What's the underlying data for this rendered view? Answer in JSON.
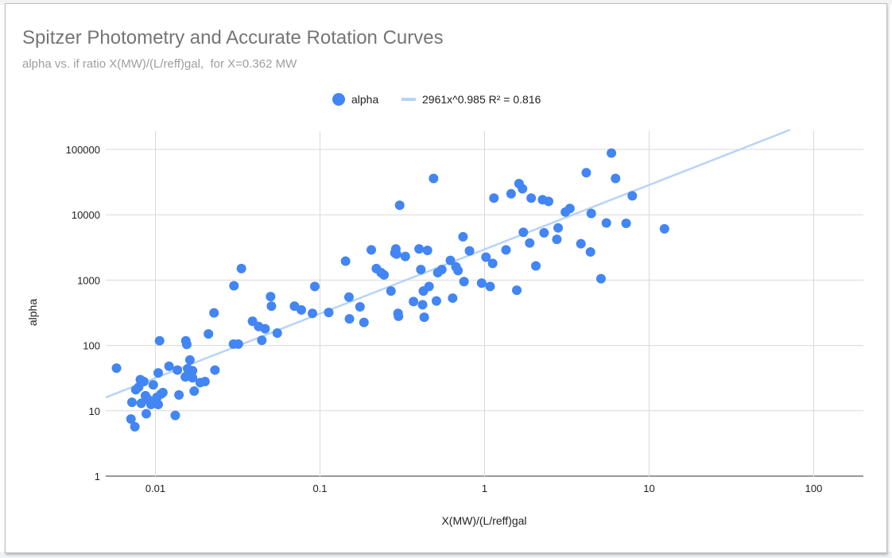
{
  "chart_data": {
    "type": "scatter",
    "title": "Spitzer Photometry and Accurate Rotation Curves",
    "subtitle": "alpha vs. if ratio X(MW)/(L/reff)gal,  for X=0.362 MW",
    "xlabel": "X(MW)/(L/reff)gal",
    "ylabel": "alpha",
    "x_scale": "log",
    "y_scale": "log",
    "xlim": [
      0.005,
      200
    ],
    "ylim": [
      1,
      200000
    ],
    "x_ticks": [
      0.01,
      0.1,
      1,
      10,
      100
    ],
    "x_tick_labels": [
      "0.01",
      "0.1",
      "1",
      "10",
      "100"
    ],
    "y_ticks": [
      1,
      10,
      100,
      1000,
      10000,
      100000
    ],
    "y_tick_labels": [
      "1",
      "10",
      "100",
      "1000",
      "10000",
      "100000"
    ],
    "grid": true,
    "legend_position": "top-center",
    "colors": {
      "points": "#4285f4",
      "trendline": "#b7d3f8",
      "grid": "#d9d9d9"
    },
    "series": [
      {
        "name": "alpha",
        "points": [
          [
            0.0058,
            45
          ],
          [
            0.0071,
            7.5
          ],
          [
            0.0072,
            13.5
          ],
          [
            0.0075,
            5.7
          ],
          [
            0.0076,
            21
          ],
          [
            0.0079,
            23
          ],
          [
            0.0081,
            30
          ],
          [
            0.0082,
            13
          ],
          [
            0.0085,
            28
          ],
          [
            0.0087,
            17
          ],
          [
            0.0088,
            9
          ],
          [
            0.009,
            15
          ],
          [
            0.0094,
            12.5
          ],
          [
            0.0097,
            25
          ],
          [
            0.0102,
            16
          ],
          [
            0.0104,
            38
          ],
          [
            0.0104,
            12.5
          ],
          [
            0.0106,
            118
          ],
          [
            0.0108,
            18
          ],
          [
            0.0111,
            19
          ],
          [
            0.0121,
            48
          ],
          [
            0.0132,
            8.5
          ],
          [
            0.0136,
            42
          ],
          [
            0.0139,
            17.5
          ],
          [
            0.0152,
            33
          ],
          [
            0.0153,
            118
          ],
          [
            0.0155,
            104
          ],
          [
            0.0157,
            44
          ],
          [
            0.0162,
            60
          ],
          [
            0.0168,
            41
          ],
          [
            0.0168,
            32
          ],
          [
            0.0172,
            20
          ],
          [
            0.0187,
            27
          ],
          [
            0.02,
            28
          ],
          [
            0.021,
            150
          ],
          [
            0.0227,
            315
          ],
          [
            0.023,
            42
          ],
          [
            0.0298,
            105
          ],
          [
            0.03,
            820
          ],
          [
            0.0319,
            105
          ],
          [
            0.0333,
            1500
          ],
          [
            0.0389,
            235
          ],
          [
            0.0424,
            195
          ],
          [
            0.0443,
            120
          ],
          [
            0.0464,
            180
          ],
          [
            0.0501,
            560
          ],
          [
            0.0507,
            400
          ],
          [
            0.055,
            155
          ],
          [
            0.07,
            400
          ],
          [
            0.077,
            350
          ],
          [
            0.09,
            310
          ],
          [
            0.093,
            800
          ],
          [
            0.113,
            320
          ],
          [
            0.143,
            1950
          ],
          [
            0.15,
            550
          ],
          [
            0.151,
            255
          ],
          [
            0.175,
            390
          ],
          [
            0.185,
            225
          ],
          [
            0.205,
            2900
          ],
          [
            0.22,
            1500
          ],
          [
            0.235,
            1300
          ],
          [
            0.245,
            1200
          ],
          [
            0.27,
            680
          ],
          [
            0.285,
            2600
          ],
          [
            0.289,
            3000
          ],
          [
            0.292,
            2500
          ],
          [
            0.298,
            310
          ],
          [
            0.3,
            280
          ],
          [
            0.305,
            14000
          ],
          [
            0.33,
            2300
          ],
          [
            0.37,
            470
          ],
          [
            0.4,
            3000
          ],
          [
            0.41,
            1450
          ],
          [
            0.42,
            420
          ],
          [
            0.425,
            680
          ],
          [
            0.43,
            270
          ],
          [
            0.45,
            2850
          ],
          [
            0.46,
            800
          ],
          [
            0.49,
            36000
          ],
          [
            0.51,
            480
          ],
          [
            0.52,
            1300
          ],
          [
            0.55,
            1450
          ],
          [
            0.62,
            2000
          ],
          [
            0.64,
            530
          ],
          [
            0.67,
            1600
          ],
          [
            0.69,
            1400
          ],
          [
            0.74,
            4600
          ],
          [
            0.75,
            950
          ],
          [
            0.81,
            2800
          ],
          [
            0.96,
            900
          ],
          [
            1.02,
            2250
          ],
          [
            1.08,
            800
          ],
          [
            1.12,
            1800
          ],
          [
            1.14,
            18000
          ],
          [
            1.35,
            2900
          ],
          [
            1.45,
            21000
          ],
          [
            1.57,
            700
          ],
          [
            1.62,
            30000
          ],
          [
            1.7,
            25000
          ],
          [
            1.72,
            5400
          ],
          [
            1.88,
            3700
          ],
          [
            1.92,
            18000
          ],
          [
            2.05,
            1650
          ],
          [
            2.25,
            17000
          ],
          [
            2.3,
            5300
          ],
          [
            2.45,
            16000
          ],
          [
            2.75,
            4200
          ],
          [
            2.8,
            6300
          ],
          [
            3.1,
            11000
          ],
          [
            3.3,
            12500
          ],
          [
            3.85,
            3600
          ],
          [
            4.15,
            44000
          ],
          [
            4.4,
            2700
          ],
          [
            4.45,
            10500
          ],
          [
            5.1,
            1050
          ],
          [
            5.5,
            7500
          ],
          [
            5.9,
            88000
          ],
          [
            6.25,
            36000
          ],
          [
            7.25,
            7400
          ],
          [
            7.9,
            19500
          ],
          [
            12.4,
            6100
          ]
        ]
      }
    ],
    "trendline": {
      "name": "2961x^0.985 R² = 0.816",
      "coefficient": 2961,
      "exponent": 0.985,
      "r_squared": 0.816
    }
  }
}
